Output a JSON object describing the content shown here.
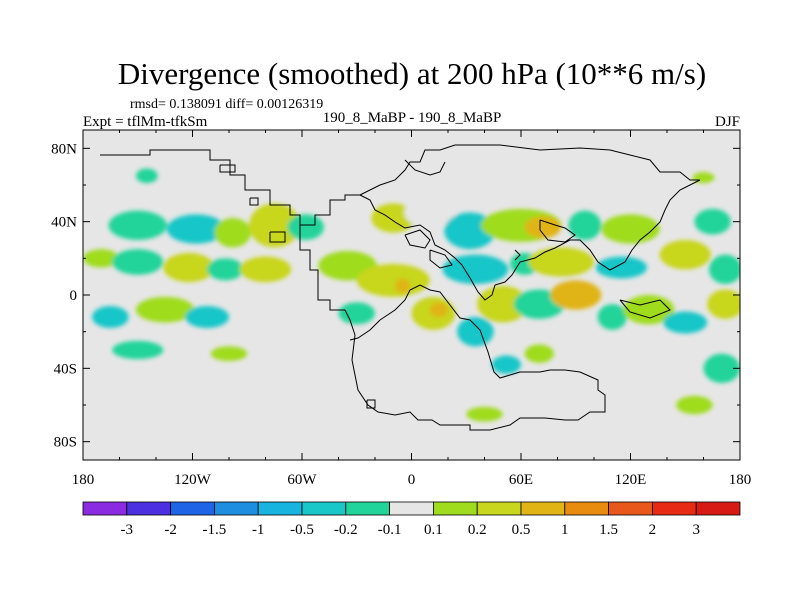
{
  "chart_data": {
    "type": "heatmap",
    "title": "Divergence (smoothed) at 200 hPa (10**6 m/s)",
    "stats_line": "rmsd= 0.138091  diff= 0.00126319",
    "left_label": "Expt = tflMm-tfkSm",
    "center_label": "190_8_MaBP - 190_8_MaBP",
    "right_label": "DJF",
    "x_axis": {
      "range": [
        -180,
        180
      ],
      "ticks": [
        -180,
        -120,
        -60,
        0,
        60,
        120,
        180
      ],
      "tick_labels": [
        "180",
        "120W",
        "60W",
        "0",
        "60E",
        "120E",
        "180"
      ]
    },
    "y_axis": {
      "range": [
        -90,
        90
      ],
      "ticks": [
        80,
        40,
        0,
        -40,
        -80
      ],
      "tick_labels": [
        "80N",
        "40N",
        "0",
        "40S",
        "80S"
      ]
    },
    "colorbar": {
      "labels": [
        "-3",
        "-2",
        "-1.5",
        "-1",
        "-0.5",
        "-0.2",
        "-0.1",
        "0.1",
        "0.2",
        "0.5",
        "1",
        "1.5",
        "2",
        "3"
      ],
      "colors": [
        "#8a2be2",
        "#4b2fe0",
        "#1e64e6",
        "#1e8ee0",
        "#17b4e0",
        "#19c6c8",
        "#21d49a",
        "#e6e6e6",
        "#9fdc1e",
        "#c8d61e",
        "#e0b414",
        "#e88c10",
        "#e8581a",
        "#e62a14",
        "#d81a14"
      ]
    },
    "anomalies": [
      {
        "lon": -150,
        "lat": 38,
        "rlon": 16,
        "rlat": 8,
        "level": 6
      },
      {
        "lon": -118,
        "lat": 36,
        "rlon": 16,
        "rlat": 8,
        "level": 5
      },
      {
        "lon": -98,
        "lat": 34,
        "rlon": 10,
        "rlat": 8,
        "level": 8
      },
      {
        "lon": -75,
        "lat": 38,
        "rlon": 14,
        "rlat": 12,
        "level": 9
      },
      {
        "lon": -58,
        "lat": 37,
        "rlon": 10,
        "rlat": 7,
        "level": 6
      },
      {
        "lon": -10,
        "lat": 42,
        "rlon": 12,
        "rlat": 8,
        "level": 9
      },
      {
        "lon": 10,
        "lat": 45,
        "rlon": 14,
        "rlat": 8,
        "level": 7
      },
      {
        "lon": 32,
        "lat": 35,
        "rlon": 14,
        "rlat": 10,
        "level": 5
      },
      {
        "lon": 60,
        "lat": 38,
        "rlon": 22,
        "rlat": 9,
        "level": 8
      },
      {
        "lon": 72,
        "lat": 37,
        "rlon": 10,
        "rlat": 6,
        "level": 10
      },
      {
        "lon": 95,
        "lat": 38,
        "rlon": 9,
        "rlat": 8,
        "level": 6
      },
      {
        "lon": 120,
        "lat": 36,
        "rlon": 16,
        "rlat": 8,
        "level": 8
      },
      {
        "lon": 165,
        "lat": 40,
        "rlon": 10,
        "rlat": 7,
        "level": 6
      },
      {
        "lon": -170,
        "lat": 20,
        "rlon": 10,
        "rlat": 5,
        "level": 8
      },
      {
        "lon": -150,
        "lat": 18,
        "rlon": 14,
        "rlat": 7,
        "level": 6
      },
      {
        "lon": -122,
        "lat": 15,
        "rlon": 14,
        "rlat": 8,
        "level": 9
      },
      {
        "lon": -102,
        "lat": 14,
        "rlon": 10,
        "rlat": 6,
        "level": 6
      },
      {
        "lon": -80,
        "lat": 14,
        "rlon": 14,
        "rlat": 7,
        "level": 9
      },
      {
        "lon": -35,
        "lat": 16,
        "rlon": 16,
        "rlat": 8,
        "level": 8
      },
      {
        "lon": -10,
        "lat": 8,
        "rlon": 20,
        "rlat": 9,
        "level": 9
      },
      {
        "lon": -5,
        "lat": 5,
        "rlon": 4,
        "rlat": 4,
        "level": 10
      },
      {
        "lon": 35,
        "lat": 14,
        "rlon": 18,
        "rlat": 8,
        "level": 5
      },
      {
        "lon": 62,
        "lat": 17,
        "rlon": 8,
        "rlat": 6,
        "level": 6
      },
      {
        "lon": 82,
        "lat": 18,
        "rlon": 18,
        "rlat": 8,
        "level": 9
      },
      {
        "lon": 115,
        "lat": 15,
        "rlon": 14,
        "rlat": 6,
        "level": 5
      },
      {
        "lon": 150,
        "lat": 22,
        "rlon": 14,
        "rlat": 8,
        "level": 9
      },
      {
        "lon": 172,
        "lat": 14,
        "rlon": 9,
        "rlat": 8,
        "level": 6
      },
      {
        "lon": -165,
        "lat": -12,
        "rlon": 10,
        "rlat": 6,
        "level": 5
      },
      {
        "lon": -135,
        "lat": -8,
        "rlon": 16,
        "rlat": 7,
        "level": 8
      },
      {
        "lon": -112,
        "lat": -12,
        "rlon": 12,
        "rlat": 6,
        "level": 5
      },
      {
        "lon": -30,
        "lat": -10,
        "rlon": 10,
        "rlat": 6,
        "level": 6
      },
      {
        "lon": 12,
        "lat": -10,
        "rlon": 12,
        "rlat": 9,
        "level": 9
      },
      {
        "lon": 15,
        "lat": -8,
        "rlon": 5,
        "rlat": 4,
        "level": 10
      },
      {
        "lon": 35,
        "lat": -20,
        "rlon": 10,
        "rlat": 8,
        "level": 5
      },
      {
        "lon": 50,
        "lat": -5,
        "rlon": 14,
        "rlat": 10,
        "level": 9
      },
      {
        "lon": 70,
        "lat": -5,
        "rlon": 14,
        "rlat": 8,
        "level": 6
      },
      {
        "lon": 90,
        "lat": 0,
        "rlon": 14,
        "rlat": 8,
        "level": 10
      },
      {
        "lon": 110,
        "lat": -12,
        "rlon": 8,
        "rlat": 7,
        "level": 6
      },
      {
        "lon": 130,
        "lat": -8,
        "rlon": 14,
        "rlat": 8,
        "level": 8
      },
      {
        "lon": 150,
        "lat": -15,
        "rlon": 12,
        "rlat": 6,
        "level": 5
      },
      {
        "lon": 172,
        "lat": -5,
        "rlon": 10,
        "rlat": 8,
        "level": 9
      },
      {
        "lon": -150,
        "lat": -30,
        "rlon": 14,
        "rlat": 5,
        "level": 6
      },
      {
        "lon": -100,
        "lat": -32,
        "rlon": 10,
        "rlat": 4,
        "level": 8
      },
      {
        "lon": 52,
        "lat": -38,
        "rlon": 8,
        "rlat": 5,
        "level": 5
      },
      {
        "lon": 70,
        "lat": -32,
        "rlon": 8,
        "rlat": 5,
        "level": 8
      },
      {
        "lon": 170,
        "lat": -40,
        "rlon": 10,
        "rlat": 8,
        "level": 6
      },
      {
        "lon": 155,
        "lat": -60,
        "rlon": 10,
        "rlat": 5,
        "level": 8
      },
      {
        "lon": 40,
        "lat": -65,
        "rlon": 10,
        "rlat": 4,
        "level": 8
      },
      {
        "lon": -145,
        "lat": 65,
        "rlon": 6,
        "rlat": 4,
        "level": 6
      },
      {
        "lon": 160,
        "lat": 64,
        "rlon": 6,
        "rlat": 3,
        "level": 8
      }
    ]
  }
}
